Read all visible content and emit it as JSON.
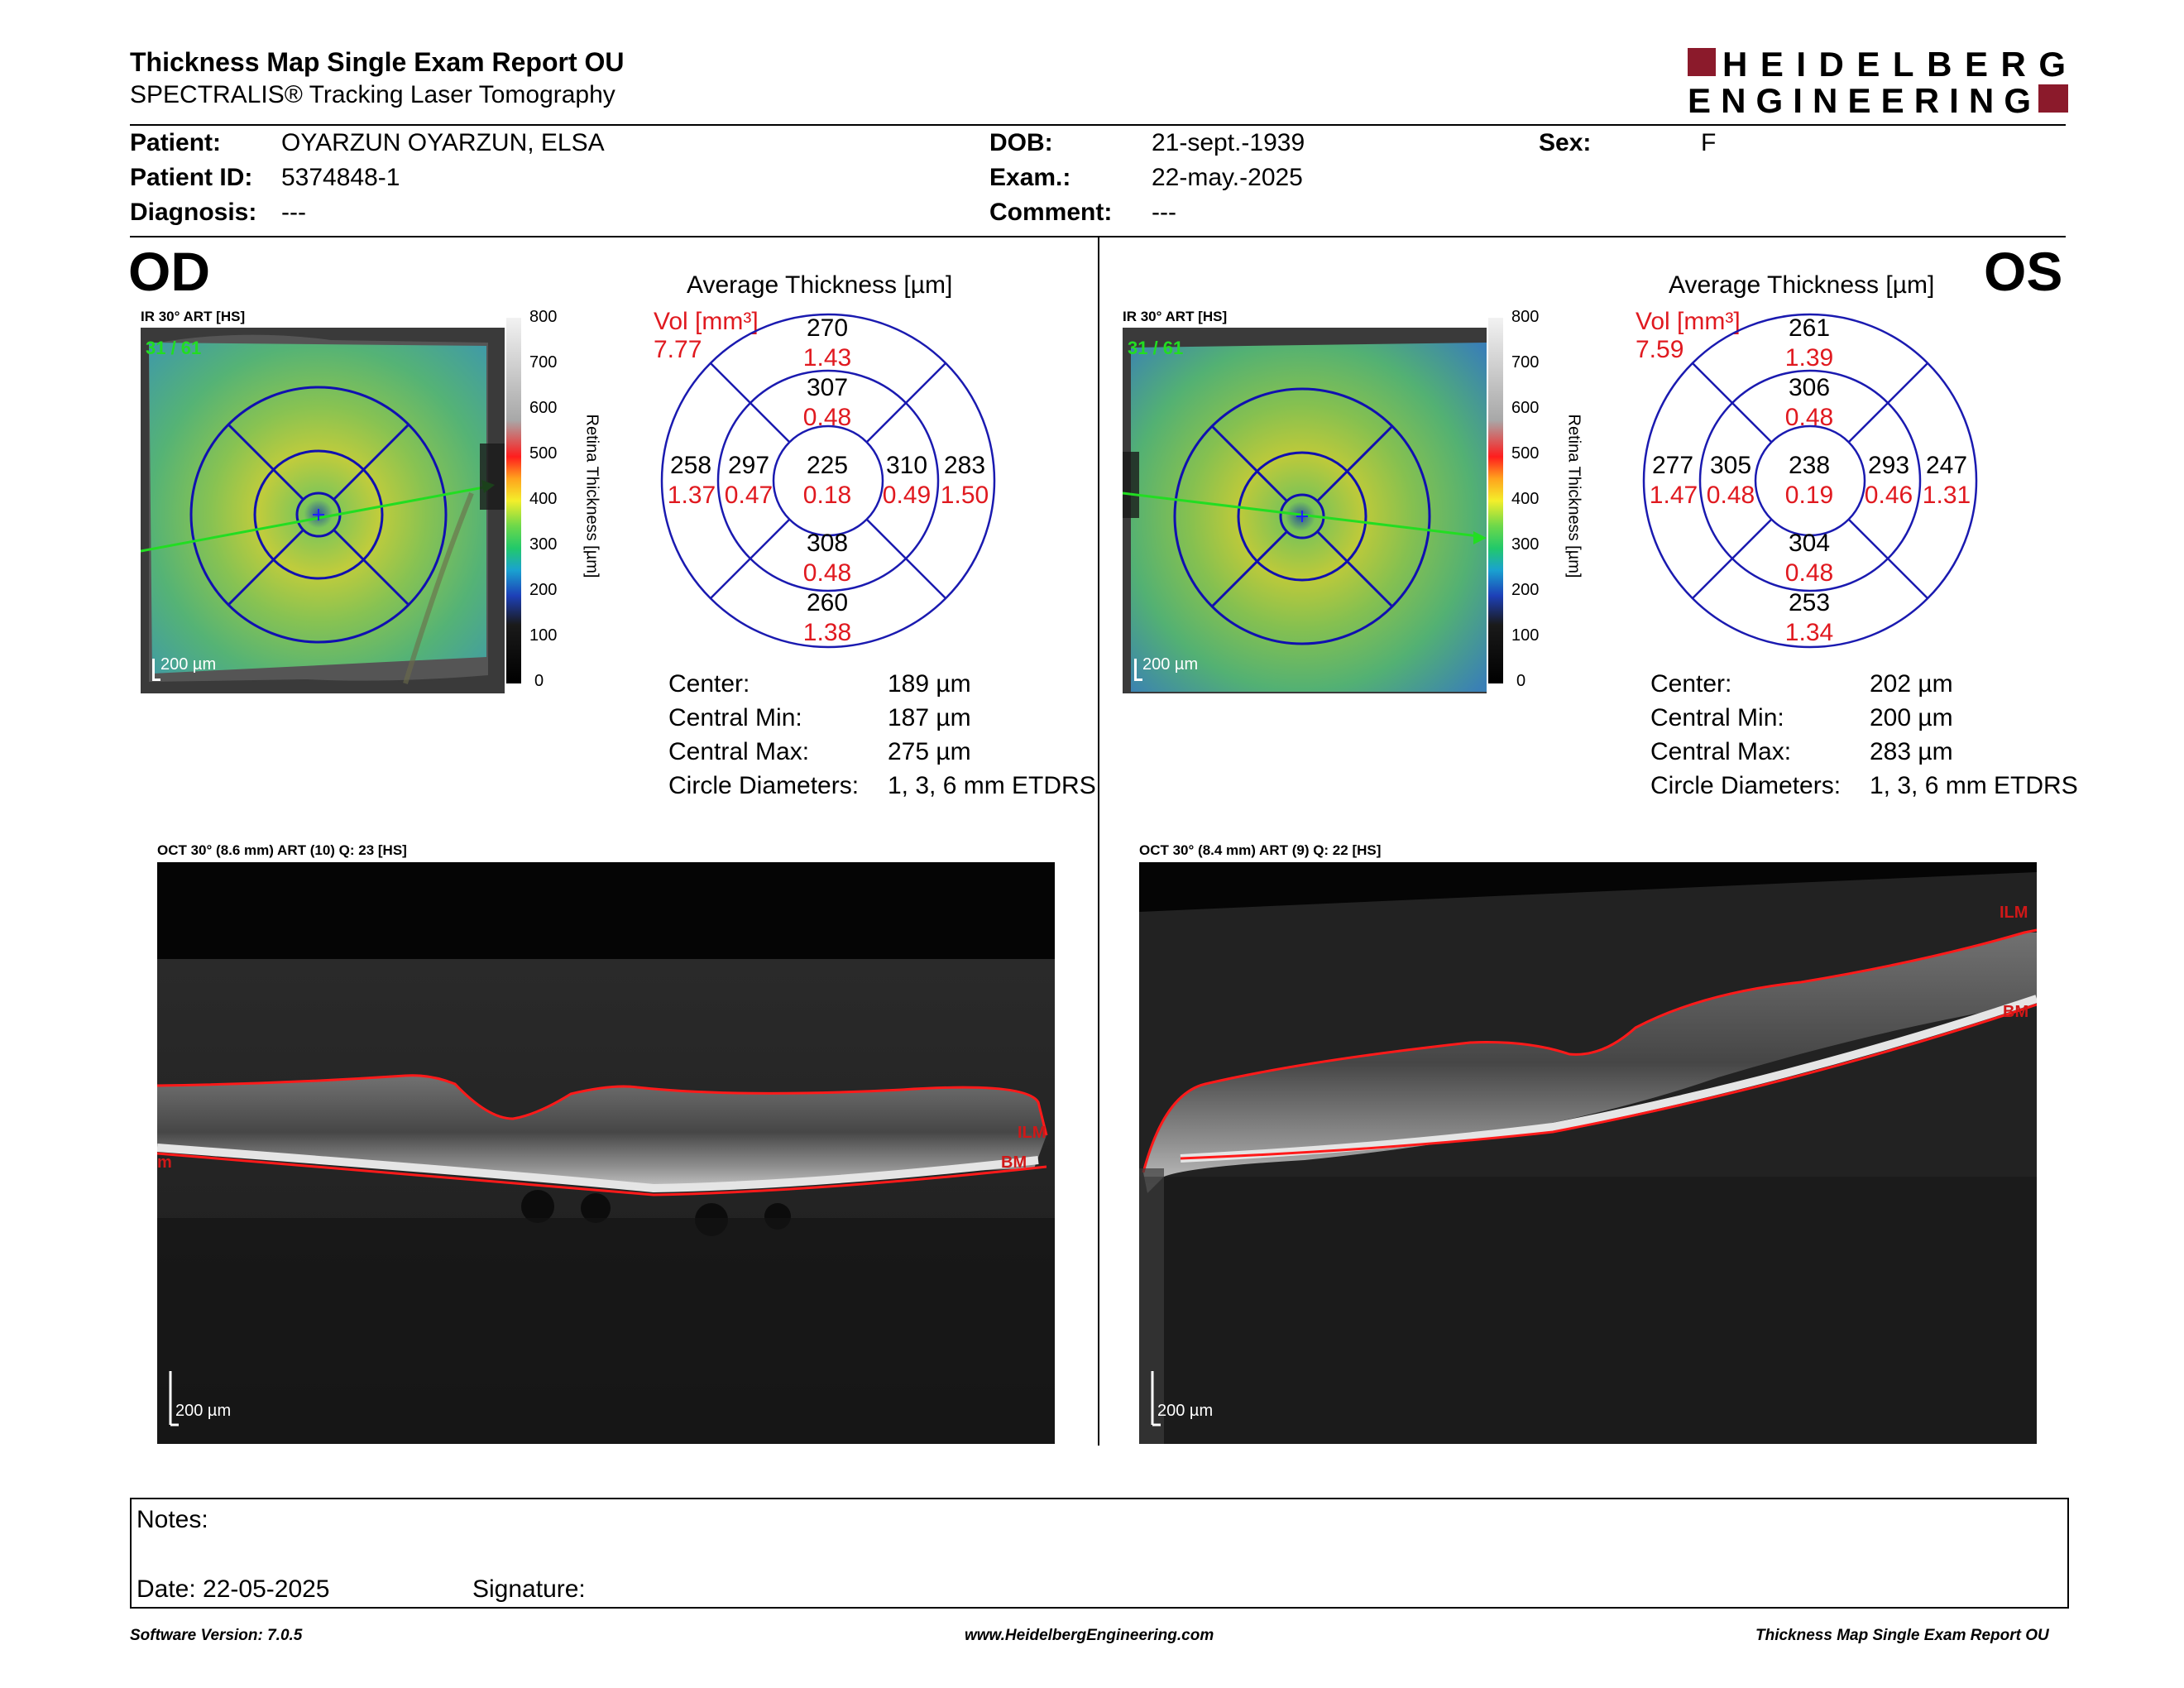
{
  "header": {
    "title": "Thickness Map Single Exam Report OU",
    "subtitle": "SPECTRALIS® Tracking Laser Tomography",
    "logo_line1": "HEIDELBERG",
    "logo_line2": "ENGINEERING"
  },
  "patient": {
    "patient_label": "Patient:",
    "patient_value": "OYARZUN OYARZUN, ELSA",
    "id_label": "Patient ID:",
    "id_value": "5374848-1",
    "diagnosis_label": "Diagnosis:",
    "diagnosis_value": "---",
    "dob_label": "DOB:",
    "dob_value": "21-sept.-1939",
    "exam_label": "Exam.:",
    "exam_value": "22-may.-2025",
    "comment_label": "Comment:",
    "comment_value": "---",
    "sex_label": "Sex:",
    "sex_value": "F"
  },
  "od": {
    "eye": "OD",
    "fundus_label": "IR 30° ART [HS]",
    "frames": "31 / 61",
    "scalebar": "200 µm",
    "colorbar_ticks": [
      "800",
      "700",
      "600",
      "500",
      "400",
      "300",
      "200",
      "100",
      "0"
    ],
    "colorbar_title": "Retina Thickness [µm]",
    "avg_title": "Average Thickness [µm]",
    "vol_label": "Vol [mm³]",
    "vol_value": "7.77",
    "etdrs": {
      "center": {
        "t": "225",
        "v": "0.18"
      },
      "inner_sup": {
        "t": "307",
        "v": "0.48"
      },
      "inner_inf": {
        "t": "308",
        "v": "0.48"
      },
      "inner_left": {
        "t": "297",
        "v": "0.47"
      },
      "inner_right": {
        "t": "310",
        "v": "0.49"
      },
      "outer_sup": {
        "t": "270",
        "v": "1.43"
      },
      "outer_inf": {
        "t": "260",
        "v": "1.38"
      },
      "outer_left": {
        "t": "258",
        "v": "1.37"
      },
      "outer_right": {
        "t": "283",
        "v": "1.50"
      }
    },
    "stats": {
      "center_label": "Center:",
      "center_value": "189 µm",
      "min_label": "Central Min:",
      "min_value": "187 µm",
      "max_label": "Central Max:",
      "max_value": "275 µm",
      "diam_label": "Circle Diameters:",
      "diam_value": "1, 3, 6 mm ETDRS"
    },
    "oct_label": "OCT 30° (8.6 mm) ART (10) Q: 23 [HS]",
    "oct_scalebar": "200 µm",
    "ilm": "ILM",
    "bm": "BM",
    "left_mark": "m"
  },
  "os": {
    "eye": "OS",
    "fundus_label": "IR 30° ART [HS]",
    "frames": "31 / 61",
    "scalebar": "200 µm",
    "colorbar_ticks": [
      "800",
      "700",
      "600",
      "500",
      "400",
      "300",
      "200",
      "100",
      "0"
    ],
    "colorbar_title": "Retina Thickness [µm]",
    "avg_title": "Average Thickness [µm]",
    "vol_label": "Vol [mm³]",
    "vol_value": "7.59",
    "etdrs": {
      "center": {
        "t": "238",
        "v": "0.19"
      },
      "inner_sup": {
        "t": "306",
        "v": "0.48"
      },
      "inner_inf": {
        "t": "304",
        "v": "0.48"
      },
      "inner_left": {
        "t": "305",
        "v": "0.48"
      },
      "inner_right": {
        "t": "293",
        "v": "0.46"
      },
      "outer_sup": {
        "t": "261",
        "v": "1.39"
      },
      "outer_inf": {
        "t": "253",
        "v": "1.34"
      },
      "outer_left": {
        "t": "277",
        "v": "1.47"
      },
      "outer_right": {
        "t": "247",
        "v": "1.31"
      }
    },
    "stats": {
      "center_label": "Center:",
      "center_value": "202 µm",
      "min_label": "Central Min:",
      "min_value": "200 µm",
      "max_label": "Central Max:",
      "max_value": "283 µm",
      "diam_label": "Circle Diameters:",
      "diam_value": "1, 3, 6 mm ETDRS"
    },
    "oct_label": "OCT 30° (8.4 mm) ART (9) Q: 22 [HS]",
    "oct_scalebar": "200 µm",
    "ilm": "ILM",
    "bm": "BM"
  },
  "notes": {
    "notes_label": "Notes:",
    "date_label": "Date: 22-05-2025",
    "signature_label": "Signature:"
  },
  "footer": {
    "software": "Software Version: 7.0.5",
    "website": "www.HeidelbergEngineering.com",
    "report": "Thickness Map Single Exam Report OU"
  },
  "colors": {
    "brand_red": "#8b1a2b",
    "value_red": "#e0191f",
    "etdrs_blue": "#1a1ab0",
    "arrow_green": "#22dd22"
  }
}
